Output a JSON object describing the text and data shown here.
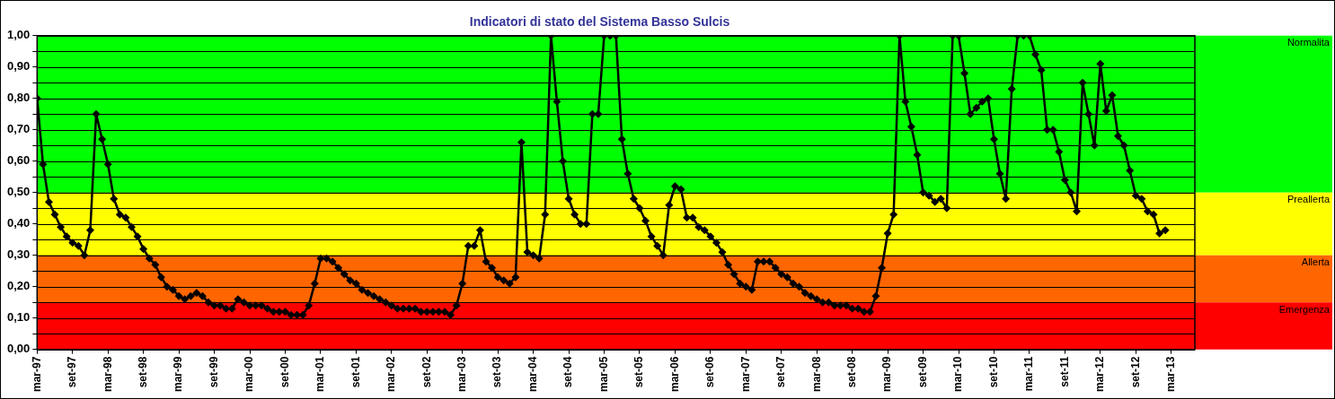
{
  "chart_data": {
    "type": "line",
    "title": "Indicatori di stato del Sistema Basso Sulcis",
    "x": [
      "1997-03",
      "1997-04",
      "1997-05",
      "1997-06",
      "1997-07",
      "1997-08",
      "1997-09",
      "1997-10",
      "1997-11",
      "1997-12",
      "1998-01",
      "1998-02",
      "1998-03",
      "1998-04",
      "1998-05",
      "1998-06",
      "1998-07",
      "1998-08",
      "1998-09",
      "1998-10",
      "1998-11",
      "1998-12",
      "1999-01",
      "1999-02",
      "1999-03",
      "1999-04",
      "1999-05",
      "1999-06",
      "1999-07",
      "1999-08",
      "1999-09",
      "1999-10",
      "1999-11",
      "1999-12",
      "2000-01",
      "2000-02",
      "2000-03",
      "2000-04",
      "2000-05",
      "2000-06",
      "2000-07",
      "2000-08",
      "2000-09",
      "2000-10",
      "2000-11",
      "2000-12",
      "2001-01",
      "2001-02",
      "2001-03",
      "2001-04",
      "2001-05",
      "2001-06",
      "2001-07",
      "2001-08",
      "2001-09",
      "2001-10",
      "2001-11",
      "2001-12",
      "2002-01",
      "2002-02",
      "2002-03",
      "2002-04",
      "2002-05",
      "2002-06",
      "2002-07",
      "2002-08",
      "2002-09",
      "2002-10",
      "2002-11",
      "2002-12",
      "2003-01",
      "2003-02",
      "2003-03",
      "2003-04",
      "2003-05",
      "2003-06",
      "2003-07",
      "2003-08",
      "2003-09",
      "2003-10",
      "2003-11",
      "2003-12",
      "2004-01",
      "2004-02",
      "2004-03",
      "2004-04",
      "2004-05",
      "2004-06",
      "2004-07",
      "2004-08",
      "2004-09",
      "2004-10",
      "2004-11",
      "2004-12",
      "2005-01",
      "2005-02",
      "2005-03",
      "2005-04",
      "2005-05",
      "2005-06",
      "2005-07",
      "2005-08",
      "2005-09",
      "2005-10",
      "2005-11",
      "2005-12",
      "2006-01",
      "2006-02",
      "2006-03",
      "2006-04",
      "2006-05",
      "2006-06",
      "2006-07",
      "2006-08",
      "2006-09",
      "2006-10",
      "2006-11",
      "2006-12",
      "2007-01",
      "2007-02",
      "2007-03",
      "2007-04",
      "2007-05",
      "2007-06",
      "2007-07",
      "2007-08",
      "2007-09",
      "2007-10",
      "2007-11",
      "2007-12",
      "2008-01",
      "2008-02",
      "2008-03",
      "2008-04",
      "2008-05",
      "2008-06",
      "2008-07",
      "2008-08",
      "2008-09",
      "2008-10",
      "2008-11",
      "2008-12",
      "2009-01",
      "2009-02",
      "2009-03",
      "2009-04",
      "2009-05",
      "2009-06",
      "2009-07",
      "2009-08",
      "2009-09",
      "2009-10",
      "2009-11",
      "2009-12",
      "2010-01",
      "2010-02",
      "2010-03",
      "2010-04",
      "2010-05",
      "2010-06",
      "2010-07",
      "2010-08",
      "2010-09",
      "2010-10",
      "2010-11",
      "2010-12",
      "2011-01",
      "2011-02",
      "2011-03",
      "2011-04",
      "2011-05",
      "2011-06",
      "2011-07",
      "2011-08",
      "2011-09",
      "2011-10",
      "2011-11",
      "2011-12",
      "2012-01",
      "2012-02",
      "2012-03",
      "2012-04",
      "2012-05",
      "2012-06",
      "2012-07",
      "2012-08",
      "2012-09",
      "2012-10",
      "2012-11",
      "2012-12",
      "2013-01",
      "2013-02"
    ],
    "series": [
      {
        "color": "#000000",
        "values": [
          0.8,
          0.59,
          0.47,
          0.43,
          0.39,
          0.36,
          0.34,
          0.33,
          0.3,
          0.38,
          0.75,
          0.67,
          0.59,
          0.48,
          0.43,
          0.42,
          0.39,
          0.36,
          0.32,
          0.29,
          0.27,
          0.23,
          0.2,
          0.19,
          0.17,
          0.16,
          0.17,
          0.18,
          0.17,
          0.15,
          0.14,
          0.14,
          0.13,
          0.13,
          0.16,
          0.15,
          0.14,
          0.14,
          0.14,
          0.13,
          0.12,
          0.12,
          0.12,
          0.11,
          0.11,
          0.11,
          0.14,
          0.21,
          0.29,
          0.29,
          0.28,
          0.26,
          0.24,
          0.22,
          0.21,
          0.19,
          0.18,
          0.17,
          0.16,
          0.15,
          0.14,
          0.13,
          0.13,
          0.13,
          0.13,
          0.12,
          0.12,
          0.12,
          0.12,
          0.12,
          0.11,
          0.14,
          0.21,
          0.33,
          0.33,
          0.38,
          0.28,
          0.26,
          0.23,
          0.22,
          0.21,
          0.23,
          0.66,
          0.31,
          0.3,
          0.29,
          0.43,
          1.0,
          0.79,
          0.6,
          0.48,
          0.43,
          0.4,
          0.4,
          0.75,
          0.75,
          1.0,
          1.0,
          1.0,
          0.67,
          0.56,
          0.48,
          0.45,
          0.41,
          0.36,
          0.33,
          0.3,
          0.46,
          0.52,
          0.51,
          0.42,
          0.42,
          0.39,
          0.38,
          0.36,
          0.34,
          0.31,
          0.27,
          0.24,
          0.21,
          0.2,
          0.19,
          0.28,
          0.28,
          0.28,
          0.26,
          0.24,
          0.23,
          0.21,
          0.2,
          0.18,
          0.17,
          0.16,
          0.15,
          0.15,
          0.14,
          0.14,
          0.14,
          0.13,
          0.13,
          0.12,
          0.12,
          0.17,
          0.26,
          0.37,
          0.43,
          1.0,
          0.79,
          0.71,
          0.62,
          0.5,
          0.49,
          0.47,
          0.48,
          0.45,
          1.0,
          1.0,
          0.88,
          0.75,
          0.77,
          0.79,
          0.8,
          0.67,
          0.56,
          0.48,
          0.83,
          1.0,
          1.0,
          1.0,
          0.94,
          0.89,
          0.7,
          0.7,
          0.63,
          0.54,
          0.5,
          0.44,
          0.85,
          0.75,
          0.65,
          0.91,
          0.76,
          0.81,
          0.68,
          0.65,
          0.57,
          0.49,
          0.48,
          0.44,
          0.43,
          0.37,
          0.38
        ]
      }
    ],
    "xlim": [
      "1997-03",
      "2013-07"
    ],
    "xticks": [
      {
        "value": "1997-03",
        "label": "mar-97"
      },
      {
        "value": "1997-09",
        "label": "set-97"
      },
      {
        "value": "1998-03",
        "label": "mar-98"
      },
      {
        "value": "1998-09",
        "label": "set-98"
      },
      {
        "value": "1999-03",
        "label": "mar-99"
      },
      {
        "value": "1999-09",
        "label": "set-99"
      },
      {
        "value": "2000-03",
        "label": "mar-00"
      },
      {
        "value": "2000-09",
        "label": "set-00"
      },
      {
        "value": "2001-03",
        "label": "mar-01"
      },
      {
        "value": "2001-09",
        "label": "set-01"
      },
      {
        "value": "2002-03",
        "label": "mar-02"
      },
      {
        "value": "2002-09",
        "label": "set-02"
      },
      {
        "value": "2003-03",
        "label": "mar-03"
      },
      {
        "value": "2003-09",
        "label": "set-03"
      },
      {
        "value": "2004-03",
        "label": "mar-04"
      },
      {
        "value": "2004-09",
        "label": "set-04"
      },
      {
        "value": "2005-03",
        "label": "mar-05"
      },
      {
        "value": "2005-09",
        "label": "set-05"
      },
      {
        "value": "2006-03",
        "label": "mar-06"
      },
      {
        "value": "2006-09",
        "label": "set-06"
      },
      {
        "value": "2007-03",
        "label": "mar-07"
      },
      {
        "value": "2007-09",
        "label": "set-07"
      },
      {
        "value": "2008-03",
        "label": "mar-08"
      },
      {
        "value": "2008-09",
        "label": "set-08"
      },
      {
        "value": "2009-03",
        "label": "mar-09"
      },
      {
        "value": "2009-09",
        "label": "set-09"
      },
      {
        "value": "2010-03",
        "label": "mar-10"
      },
      {
        "value": "2010-09",
        "label": "set-10"
      },
      {
        "value": "2011-03",
        "label": "mar-11"
      },
      {
        "value": "2011-09",
        "label": "set-11"
      },
      {
        "value": "2012-03",
        "label": "mar-12"
      },
      {
        "value": "2012-09",
        "label": "set-12"
      },
      {
        "value": "2013-03",
        "label": "mar-13"
      }
    ],
    "ylim": [
      0,
      1
    ],
    "yticks": [
      {
        "value": 0,
        "label": "0,00"
      },
      {
        "value": 0.05,
        "label": null
      },
      {
        "value": 0.1,
        "label": "0,10"
      },
      {
        "value": 0.15,
        "label": null
      },
      {
        "value": 0.2,
        "label": "0,20"
      },
      {
        "value": 0.25,
        "label": null
      },
      {
        "value": 0.3,
        "label": "0,30"
      },
      {
        "value": 0.35,
        "label": null
      },
      {
        "value": 0.4,
        "label": "0,40"
      },
      {
        "value": 0.45,
        "label": null
      },
      {
        "value": 0.5,
        "label": "0,50"
      },
      {
        "value": 0.55,
        "label": null
      },
      {
        "value": 0.6,
        "label": "0,60"
      },
      {
        "value": 0.65,
        "label": null
      },
      {
        "value": 0.7,
        "label": "0,70"
      },
      {
        "value": 0.75,
        "label": null
      },
      {
        "value": 0.8,
        "label": "0,80"
      },
      {
        "value": 0.85,
        "label": null
      },
      {
        "value": 0.9,
        "label": "0,90"
      },
      {
        "value": 0.95,
        "label": null
      },
      {
        "value": 1,
        "label": "1,00"
      }
    ],
    "bands": [
      {
        "axis": "y",
        "from": 0.5,
        "to": 1,
        "label": "Normalita",
        "color": "#00ff00"
      },
      {
        "axis": "y",
        "from": 0.3,
        "to": 0.5,
        "label": "Preallerta",
        "color": "#ffff00"
      },
      {
        "axis": "y",
        "from": 0.15,
        "to": 0.3,
        "label": "Allerta",
        "color": "#ff6600"
      },
      {
        "axis": "y",
        "from": 0,
        "to": 0.15,
        "label": "Emergenza",
        "color": "#ff0000"
      }
    ],
    "grid": "y",
    "legend": false,
    "marker": "diamond",
    "line_style": "solid"
  }
}
